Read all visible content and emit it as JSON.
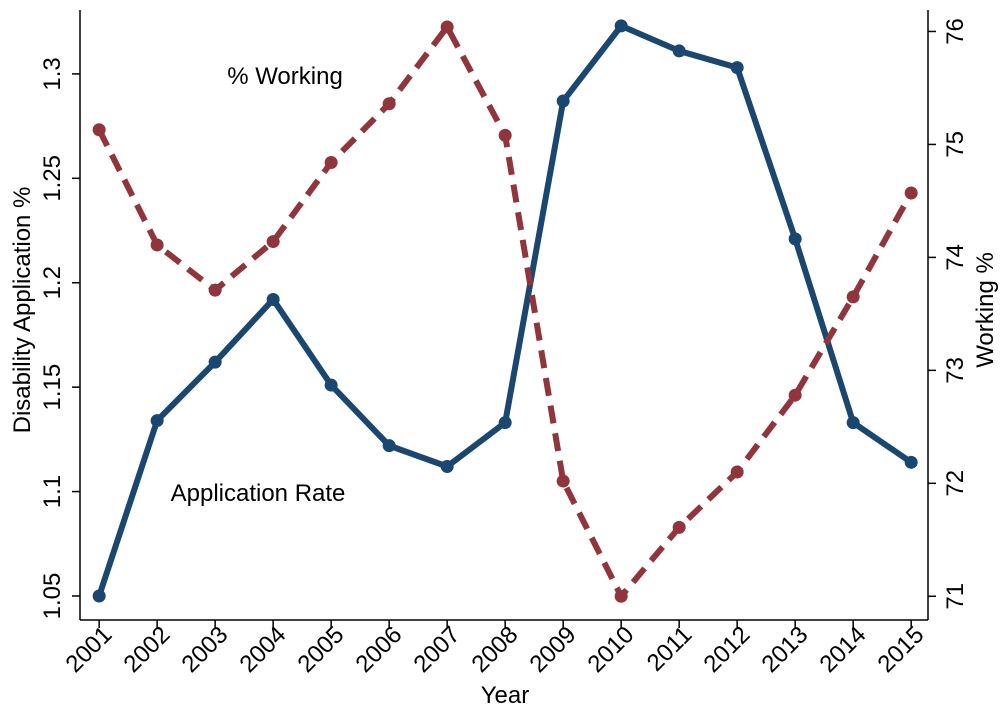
{
  "chart_data": {
    "type": "line",
    "x_label": "Year",
    "y_label": "Disability Application %",
    "y2_label": "Working %",
    "annotations": [
      "% Working",
      "Application Rate"
    ],
    "x": [
      2001,
      2002,
      2003,
      2004,
      2005,
      2006,
      2007,
      2008,
      2009,
      2010,
      2011,
      2012,
      2013,
      2014,
      2015
    ],
    "xlim": [
      2000.67,
      2015.29
    ],
    "xticks": [
      2001,
      2002,
      2003,
      2004,
      2005,
      2006,
      2007,
      2008,
      2009,
      2010,
      2011,
      2012,
      2013,
      2014,
      2015
    ],
    "ylim": [
      1.0385,
      1.3306
    ],
    "yticks": [
      1.05,
      1.1,
      1.15,
      1.2,
      1.25,
      1.3
    ],
    "y2lim": [
      70.79,
      76.19
    ],
    "y2ticks": [
      71,
      72,
      73,
      74,
      75,
      76
    ],
    "series": [
      {
        "name": "Application Rate",
        "color": "#1a476f",
        "dashed": false,
        "values": [
          1.05,
          1.134,
          1.162,
          1.192,
          1.151,
          1.122,
          1.112,
          1.133,
          1.287,
          1.323,
          1.311,
          1.303,
          1.221,
          1.133,
          1.114
        ]
      },
      {
        "name": "% Working",
        "color": "#90353b",
        "dashed": true,
        "axis": "y2",
        "values": [
          75.13,
          74.11,
          73.71,
          74.14,
          74.84,
          75.36,
          76.04,
          75.08,
          72.02,
          71.0,
          71.61,
          72.1,
          72.78,
          73.65,
          74.57
        ]
      }
    ]
  }
}
